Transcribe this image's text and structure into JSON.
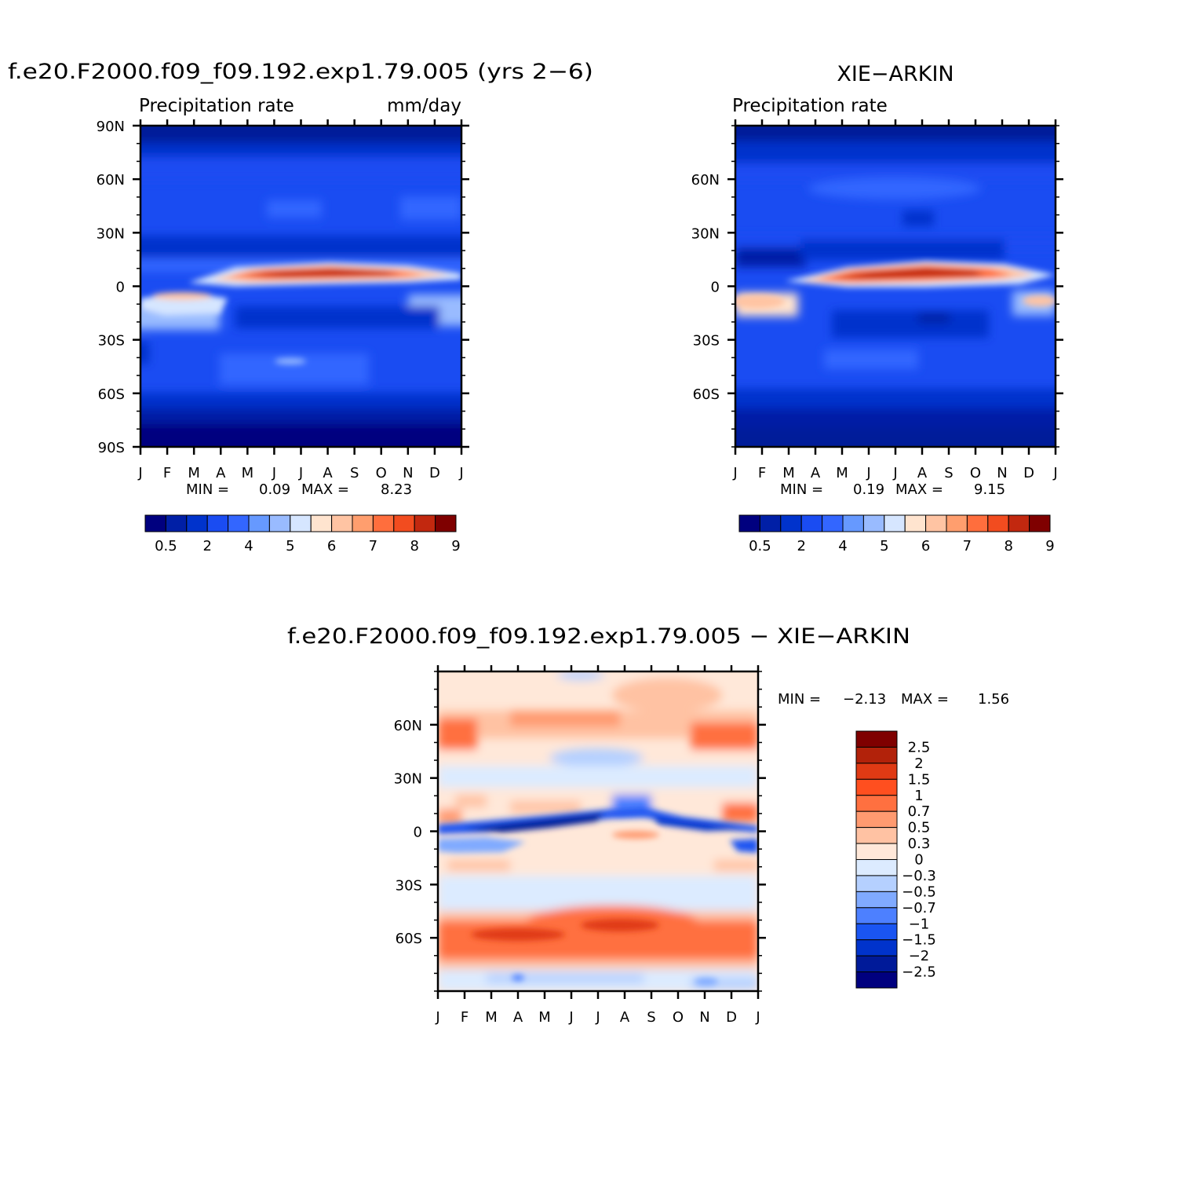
{
  "months": [
    "J",
    "F",
    "M",
    "A",
    "M",
    "J",
    "J",
    "A",
    "S",
    "O",
    "N",
    "D",
    "J"
  ],
  "panels": {
    "model": {
      "title": "f.e20.F2000.f09_f09.192.exp1.79.005 (yrs 2−6)",
      "left_label": "Precipitation rate",
      "right_label": "mm/day",
      "lat_ticks": [
        "90N",
        "60N",
        "30N",
        "0",
        "30S",
        "60S",
        "90S"
      ],
      "min_label": "MIN =",
      "min_value": "0.09",
      "max_label": "MAX =",
      "max_value": "8.23"
    },
    "obs": {
      "title": "XIE−ARKIN",
      "left_label": "Precipitation rate",
      "lat_ticks": [
        "60N",
        "30N",
        "0",
        "30S",
        "60S"
      ],
      "min_label": "MIN =",
      "min_value": "0.19",
      "max_label": "MAX =",
      "max_value": "9.15"
    },
    "diff": {
      "title": "f.e20.F2000.f09_f09.192.exp1.79.005 − XIE−ARKIN",
      "lat_ticks": [
        "60N",
        "30N",
        "0",
        "30S",
        "60S"
      ],
      "min_label": "MIN =",
      "min_value": "−2.13",
      "max_label": "MAX =",
      "max_value": "1.56"
    }
  },
  "colorbar_top": {
    "labels": [
      "0.5",
      "2",
      "4",
      "5",
      "6",
      "7",
      "8",
      "9"
    ],
    "colors": [
      "#00007f",
      "#001fa6",
      "#0033cc",
      "#1a4cf2",
      "#3366ff",
      "#6699ff",
      "#99bbff",
      "#d6e6ff",
      "#ffe4cf",
      "#ffc4a3",
      "#ff9e6e",
      "#ff6e3d",
      "#f24c1f",
      "#c2280f",
      "#7f0000"
    ]
  },
  "colorbar_diff": {
    "labels": [
      "2.5",
      "2",
      "1.5",
      "1",
      "0.7",
      "0.5",
      "0.3",
      "0",
      "−0.3",
      "−0.5",
      "−0.7",
      "−1",
      "−1.5",
      "−2",
      "−2.5"
    ],
    "colors": [
      "#7f0000",
      "#b2220a",
      "#e03a14",
      "#ff4f1f",
      "#ff7040",
      "#ff9a70",
      "#ffc2a3",
      "#ffe8d9",
      "#dcebff",
      "#b5d0ff",
      "#80aaff",
      "#4d80ff",
      "#1a55f2",
      "#0033cc",
      "#001a99",
      "#00007f"
    ]
  },
  "chart_data": [
    {
      "type": "heatmap",
      "title": "f.e20.F2000.f09_f09.192.exp1.79.005 (yrs 2−6)",
      "subtitle_left": "Precipitation rate",
      "subtitle_right": "mm/day",
      "x": [
        "J",
        "F",
        "M",
        "A",
        "M",
        "J",
        "J",
        "A",
        "S",
        "O",
        "N",
        "D",
        "J"
      ],
      "y_ticks": [
        "90N",
        "60N",
        "30N",
        "0",
        "30S",
        "60S",
        "90S"
      ],
      "levels": [
        0.5,
        2,
        4,
        5,
        6,
        7,
        8,
        9
      ],
      "min": 0.09,
      "max": 8.23
    },
    {
      "type": "heatmap",
      "title": "XIE−ARKIN",
      "subtitle_left": "Precipitation rate",
      "x": [
        "J",
        "F",
        "M",
        "A",
        "M",
        "J",
        "J",
        "A",
        "S",
        "O",
        "N",
        "D",
        "J"
      ],
      "y_ticks": [
        "60N",
        "30N",
        "0",
        "30S",
        "60S"
      ],
      "levels": [
        0.5,
        2,
        4,
        5,
        6,
        7,
        8,
        9
      ],
      "min": 0.19,
      "max": 9.15
    },
    {
      "type": "heatmap",
      "title": "f.e20.F2000.f09_f09.192.exp1.79.005 − XIE−ARKIN",
      "x": [
        "J",
        "F",
        "M",
        "A",
        "M",
        "J",
        "J",
        "A",
        "S",
        "O",
        "N",
        "D",
        "J"
      ],
      "y_ticks": [
        "60N",
        "30N",
        "0",
        "30S",
        "60S"
      ],
      "levels": [
        -2.5,
        -2,
        -1.5,
        -1,
        -0.7,
        -0.5,
        -0.3,
        0,
        0.3,
        0.5,
        0.7,
        1,
        1.5,
        2,
        2.5
      ],
      "min": -2.13,
      "max": 1.56
    }
  ]
}
